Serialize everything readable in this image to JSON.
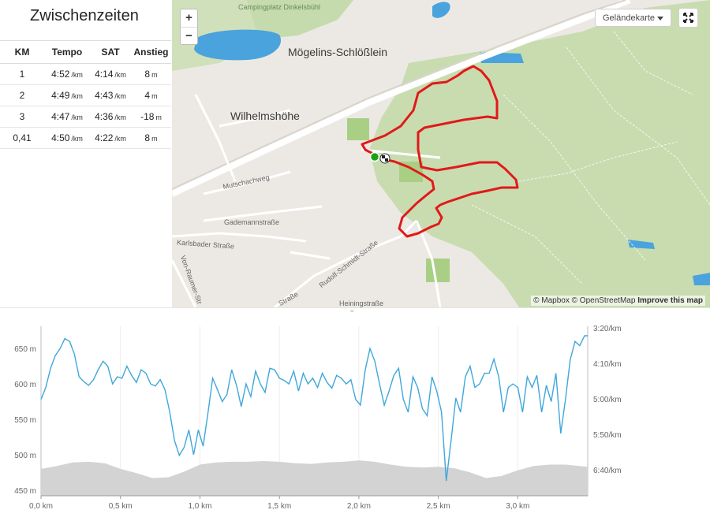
{
  "splits": {
    "title": "Zwischenzeiten",
    "columns": [
      "KM",
      "Tempo",
      "SAT",
      "Anstieg"
    ],
    "rows": [
      {
        "km": "1",
        "tempo": "4:52",
        "tempo_unit": "/km",
        "sat": "4:14",
        "sat_unit": "/km",
        "ascent": "8",
        "ascent_unit": "m"
      },
      {
        "km": "2",
        "tempo": "4:49",
        "tempo_unit": "/km",
        "sat": "4:43",
        "sat_unit": "/km",
        "ascent": "4",
        "ascent_unit": "m"
      },
      {
        "km": "3",
        "tempo": "4:47",
        "tempo_unit": "/km",
        "sat": "4:36",
        "sat_unit": "/km",
        "ascent": "-18",
        "ascent_unit": "m"
      },
      {
        "km": "0,41",
        "tempo": "4:50",
        "tempo_unit": "/km",
        "sat": "4:22",
        "sat_unit": "/km",
        "ascent": "8",
        "ascent_unit": "m"
      }
    ]
  },
  "map": {
    "zoom_in": "+",
    "zoom_out": "−",
    "layer_select": "Geländekarte",
    "place_labels": [
      "Mögelins-Schlößlein",
      "Wilhelmshöhe",
      "Campingplatz Dinkelsbühl"
    ],
    "street_labels": [
      "Mutschachweg",
      "Gademannstraße",
      "Karlsbader Straße",
      "Rudolf-Schmidt-Straße",
      "Von-Raumer-Str",
      "Straße",
      "Heiningstraße"
    ],
    "attribution_mapbox": "© Mapbox",
    "attribution_osm": "© OpenStreetMap",
    "attribution_improve": "Improve this map",
    "route_color": "#e11919",
    "start_color": "#1aa31a"
  },
  "chart_data": {
    "type": "line",
    "x_ticks": [
      "0,0 km",
      "0,5 km",
      "1,0 km",
      "1,5 km",
      "2,0 km",
      "2,5 km",
      "3,0 km"
    ],
    "x_range_km": [
      0,
      3.44
    ],
    "y_left_ticks": [
      "650 m",
      "600 m",
      "550 m",
      "500 m",
      "450 m"
    ],
    "y_left_range_m": [
      442,
      668
    ],
    "y_right_ticks": [
      "3:20/km",
      "4:10/km",
      "5:00/km",
      "5:50/km",
      "6:40/km"
    ],
    "series": [
      {
        "kind": "pace",
        "color": "#3fa7db",
        "x": [
          0,
          0.03,
          0.06,
          0.09,
          0.12,
          0.15,
          0.18,
          0.21,
          0.24,
          0.27,
          0.3,
          0.33,
          0.36,
          0.39,
          0.42,
          0.45,
          0.48,
          0.51,
          0.54,
          0.57,
          0.6,
          0.63,
          0.66,
          0.69,
          0.72,
          0.75,
          0.78,
          0.81,
          0.84,
          0.87,
          0.9,
          0.93,
          0.96,
          0.99,
          1.02,
          1.05,
          1.08,
          1.11,
          1.14,
          1.17,
          1.2,
          1.23,
          1.26,
          1.29,
          1.32,
          1.35,
          1.38,
          1.41,
          1.44,
          1.47,
          1.5,
          1.53,
          1.56,
          1.59,
          1.62,
          1.65,
          1.68,
          1.71,
          1.74,
          1.77,
          1.8,
          1.83,
          1.86,
          1.89,
          1.92,
          1.95,
          1.98,
          2.01,
          2.04,
          2.07,
          2.1,
          2.13,
          2.16,
          2.19,
          2.22,
          2.25,
          2.28,
          2.31,
          2.34,
          2.37,
          2.4,
          2.43,
          2.46,
          2.49,
          2.52,
          2.55,
          2.58,
          2.61,
          2.64,
          2.67,
          2.7,
          2.73,
          2.76,
          2.79,
          2.82,
          2.85,
          2.88,
          2.91,
          2.94,
          2.97,
          3.0,
          3.03,
          3.06,
          3.09,
          3.12,
          3.15,
          3.18,
          3.21,
          3.24,
          3.27,
          3.3,
          3.33,
          3.36,
          3.39,
          3.42,
          3.44
        ],
        "y": [
          578,
          595,
          622,
          640,
          650,
          664,
          660,
          642,
          610,
          603,
          598,
          606,
          620,
          632,
          625,
          600,
          610,
          608,
          625,
          612,
          602,
          620,
          615,
          600,
          597,
          606,
          592,
          560,
          520,
          499,
          510,
          535,
          500,
          535,
          512,
          558,
          608,
          592,
          575,
          585,
          620,
          598,
          568,
          600,
          582,
          618,
          600,
          588,
          622,
          620,
          608,
          605,
          600,
          618,
          590,
          615,
          600,
          608,
          595,
          615,
          602,
          594,
          612,
          608,
          600,
          606,
          578,
          570,
          620,
          650,
          632,
          600,
          570,
          590,
          612,
          622,
          578,
          560,
          610,
          595,
          565,
          555,
          610,
          590,
          560,
          463,
          520,
          580,
          560,
          610,
          625,
          595,
          600,
          615,
          615,
          635,
          610,
          560,
          595,
          600,
          595,
          560,
          610,
          595,
          612,
          560,
          598,
          575,
          615,
          530,
          578,
          634,
          660,
          654,
          668,
          668
        ]
      },
      {
        "kind": "elevation",
        "color": "#d3d3d3",
        "x": [
          0,
          0.1,
          0.2,
          0.3,
          0.4,
          0.5,
          0.6,
          0.7,
          0.8,
          0.9,
          1.0,
          1.1,
          1.2,
          1.3,
          1.4,
          1.5,
          1.6,
          1.7,
          1.8,
          1.9,
          2.0,
          2.1,
          2.2,
          2.3,
          2.4,
          2.5,
          2.6,
          2.7,
          2.8,
          2.9,
          3.0,
          3.1,
          3.2,
          3.3,
          3.44
        ],
        "y": [
          480,
          484,
          489,
          490,
          488,
          480,
          474,
          467,
          468,
          476,
          486,
          489,
          490,
          490,
          491,
          490,
          488,
          487,
          489,
          490,
          492,
          490,
          486,
          483,
          482,
          483,
          481,
          475,
          467,
          470,
          478,
          484,
          486,
          486,
          483
        ]
      }
    ]
  }
}
